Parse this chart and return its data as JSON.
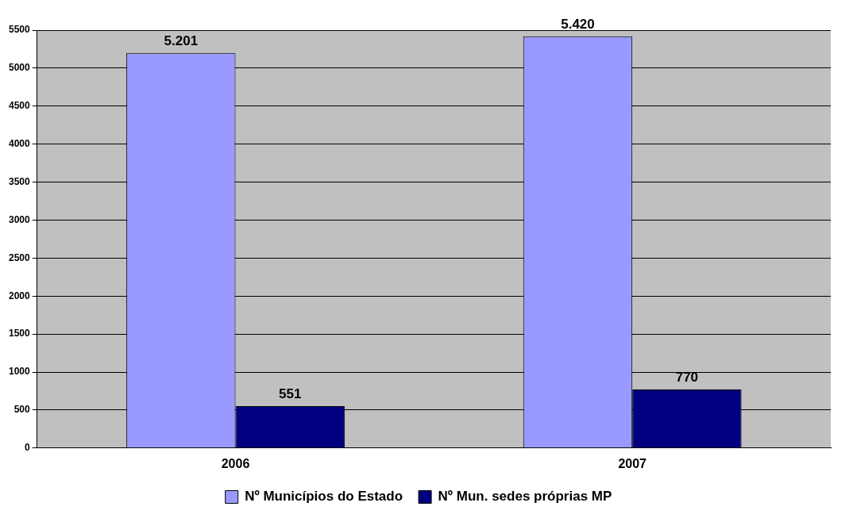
{
  "chart_data": {
    "type": "bar",
    "categories": [
      "2006",
      "2007"
    ],
    "series": [
      {
        "name": "Nº Municípios do Estado",
        "color": "#9999ff",
        "values": [
          5201,
          5420
        ],
        "value_labels": [
          "5.201",
          "5.420"
        ]
      },
      {
        "name": "Nº Mun. sedes próprias MP",
        "color": "#000080",
        "values": [
          551,
          770
        ],
        "value_labels": [
          "551",
          "770"
        ]
      }
    ],
    "ylim": [
      0,
      5500
    ],
    "yticks": [
      0,
      500,
      1000,
      1500,
      2000,
      2500,
      3000,
      3500,
      4000,
      4500,
      5000,
      5500
    ],
    "grid": "y",
    "legend": "bottom"
  }
}
